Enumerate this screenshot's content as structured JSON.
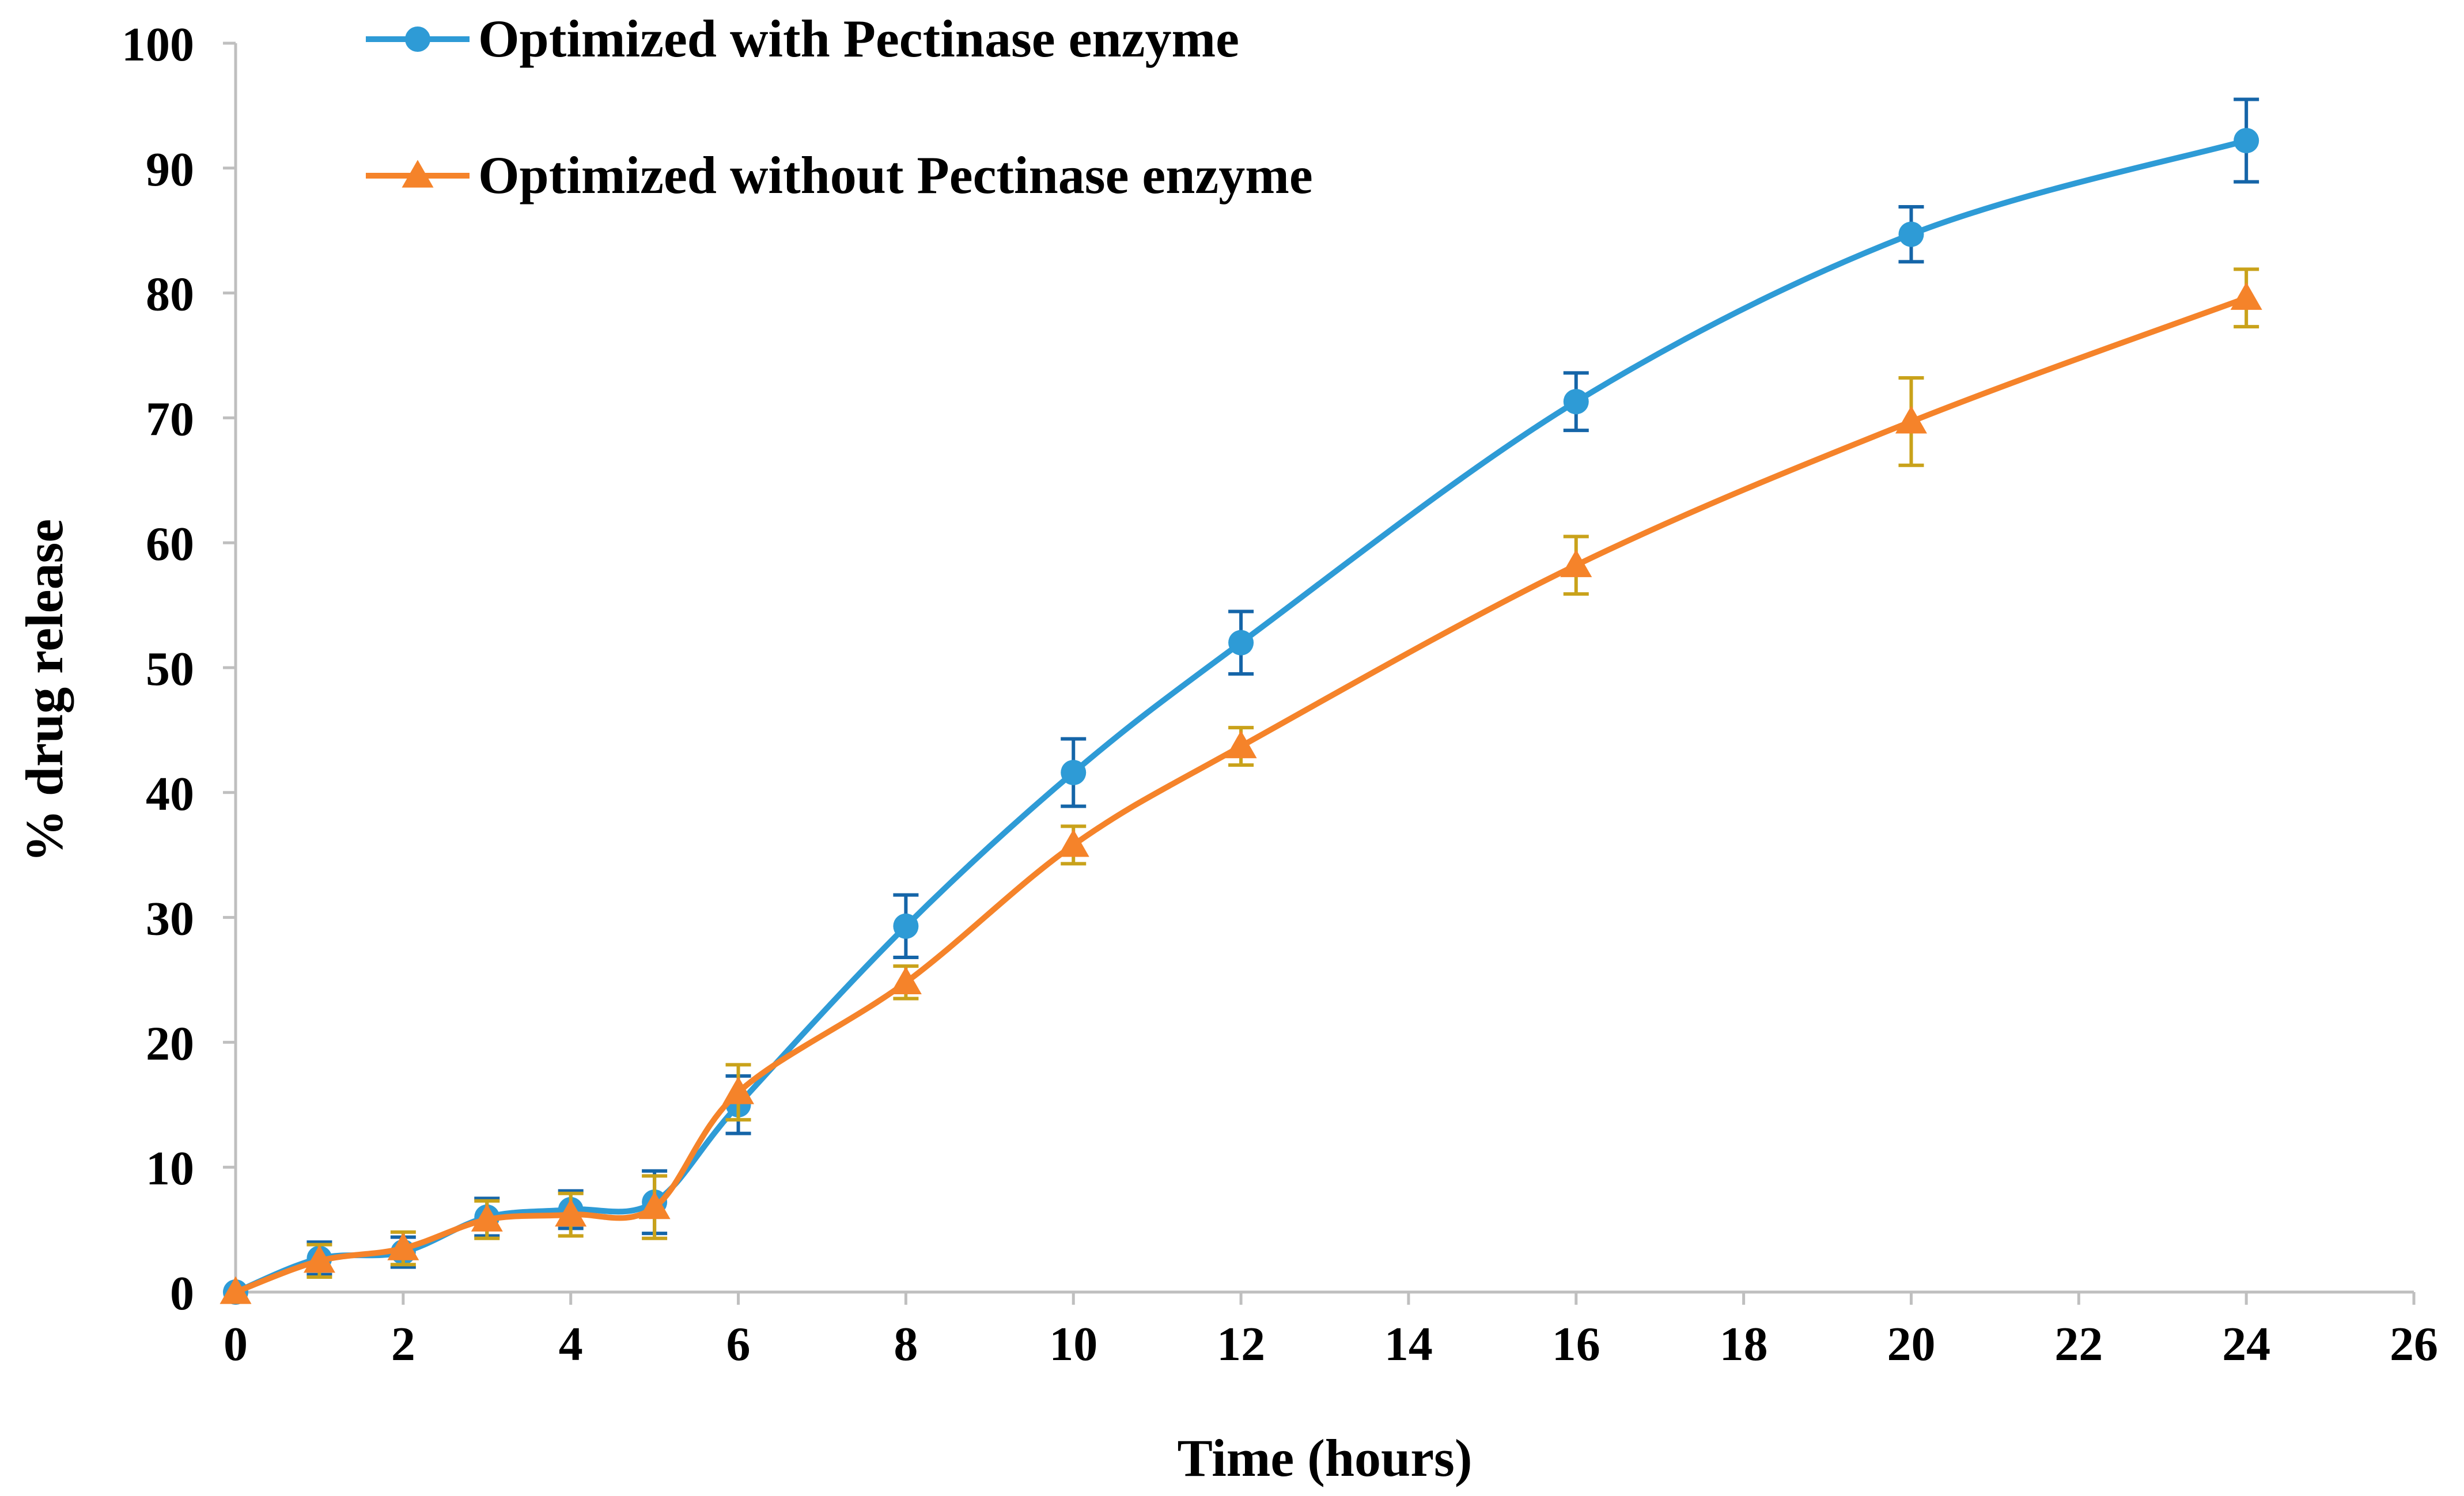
{
  "chart_data": {
    "type": "line",
    "title": "",
    "xlabel": "Time (hours)",
    "ylabel": "% drug release",
    "xlim": [
      0,
      26
    ],
    "ylim": [
      0,
      100
    ],
    "x_ticks": [
      "0",
      "2",
      "4",
      "6",
      "8",
      "10",
      "12",
      "14",
      "16",
      "18",
      "20",
      "22",
      "24",
      "26"
    ],
    "y_ticks": [
      "0",
      "10",
      "20",
      "30",
      "40",
      "50",
      "60",
      "70",
      "80",
      "90",
      "100"
    ],
    "grid": false,
    "legend_position": "top-left",
    "series": [
      {
        "name": "Optimized with Pectinase enzyme",
        "color": "#2e9bd6",
        "error_color": "#1565a8",
        "marker": "circle",
        "x": [
          0,
          1,
          2,
          3,
          4,
          5,
          6,
          8,
          10,
          12,
          16,
          20,
          24
        ],
        "values": [
          0,
          2.7,
          3.2,
          6.0,
          6.6,
          7.2,
          15.0,
          29.3,
          41.6,
          52.0,
          71.3,
          84.7,
          92.2
        ],
        "errors": [
          0,
          1.3,
          1.2,
          1.5,
          1.5,
          2.5,
          2.3,
          2.5,
          2.7,
          2.5,
          2.3,
          2.2,
          3.3
        ]
      },
      {
        "name": "Optimized without Pectinase enzyme",
        "color": "#f5832a",
        "error_color": "#c9a21a",
        "marker": "triangle",
        "x": [
          0,
          1,
          2,
          3,
          4,
          5,
          6,
          8,
          10,
          12,
          16,
          20,
          24
        ],
        "values": [
          0,
          2.5,
          3.5,
          5.8,
          6.2,
          6.8,
          16.0,
          24.8,
          35.8,
          43.7,
          58.2,
          69.7,
          79.6
        ],
        "errors": [
          0,
          1.3,
          1.3,
          1.5,
          1.7,
          2.5,
          2.2,
          1.3,
          1.5,
          1.5,
          2.3,
          3.5,
          2.3
        ]
      }
    ]
  }
}
